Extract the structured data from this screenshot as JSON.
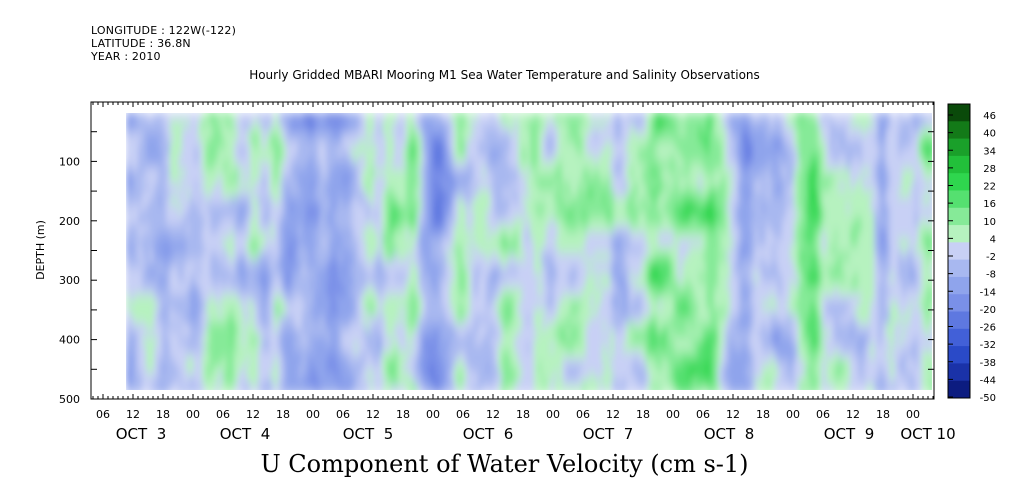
{
  "header": {
    "longitude": "LONGITUDE : 122W(-122)",
    "latitude": "LATITUDE : 36.8N",
    "year": "YEAR : 2010"
  },
  "chart_data": {
    "type": "heatmap",
    "title": "Hourly Gridded MBARI Mooring M1 Sea Water Temperature and Salinity Observations",
    "subtitle": "U Component of Water Velocity (cm s-1)",
    "ylabel": "DEPTH (m)",
    "xlabel": "",
    "ylim": [
      500,
      0
    ],
    "y_ticks": [
      100,
      200,
      300,
      400,
      500
    ],
    "x_hour_ticks": [
      "06",
      "12",
      "18",
      "00",
      "06",
      "12",
      "18",
      "00",
      "06",
      "12",
      "18",
      "00",
      "06",
      "12",
      "18",
      "00",
      "06",
      "12",
      "18",
      "00",
      "06",
      "12",
      "18",
      "00",
      "06",
      "12",
      "18",
      "00"
    ],
    "x_day_labels": [
      "OCT  3",
      "OCT  4",
      "OCT  5",
      "OCT  6",
      "OCT  7",
      "OCT  8",
      "OCT  9",
      "OCT 10"
    ],
    "data_extent": {
      "x_start": "Oct 3 10:00",
      "x_end": "Oct 10 04:00",
      "depth_top": 20,
      "depth_bottom": 485
    },
    "colorbar": {
      "labels": [
        "46",
        "40",
        "34",
        "28",
        "22",
        "16",
        "10",
        "4",
        "-2",
        "-8",
        "-14",
        "-20",
        "-26",
        "-32",
        "-38",
        "-44",
        "-50"
      ],
      "range": [
        -50,
        50
      ],
      "colors": [
        "#0a4a0a",
        "#137a18",
        "#1aa02a",
        "#22c03a",
        "#2fd64e",
        "#55e070",
        "#86ea98",
        "#b6f2bf",
        "#c8d0f5",
        "#a8b8f0",
        "#8fa4ec",
        "#7a90e8",
        "#5e78e0",
        "#4260d8",
        "#2a4ac8",
        "#1a32a8",
        "#0c1c80"
      ]
    }
  }
}
